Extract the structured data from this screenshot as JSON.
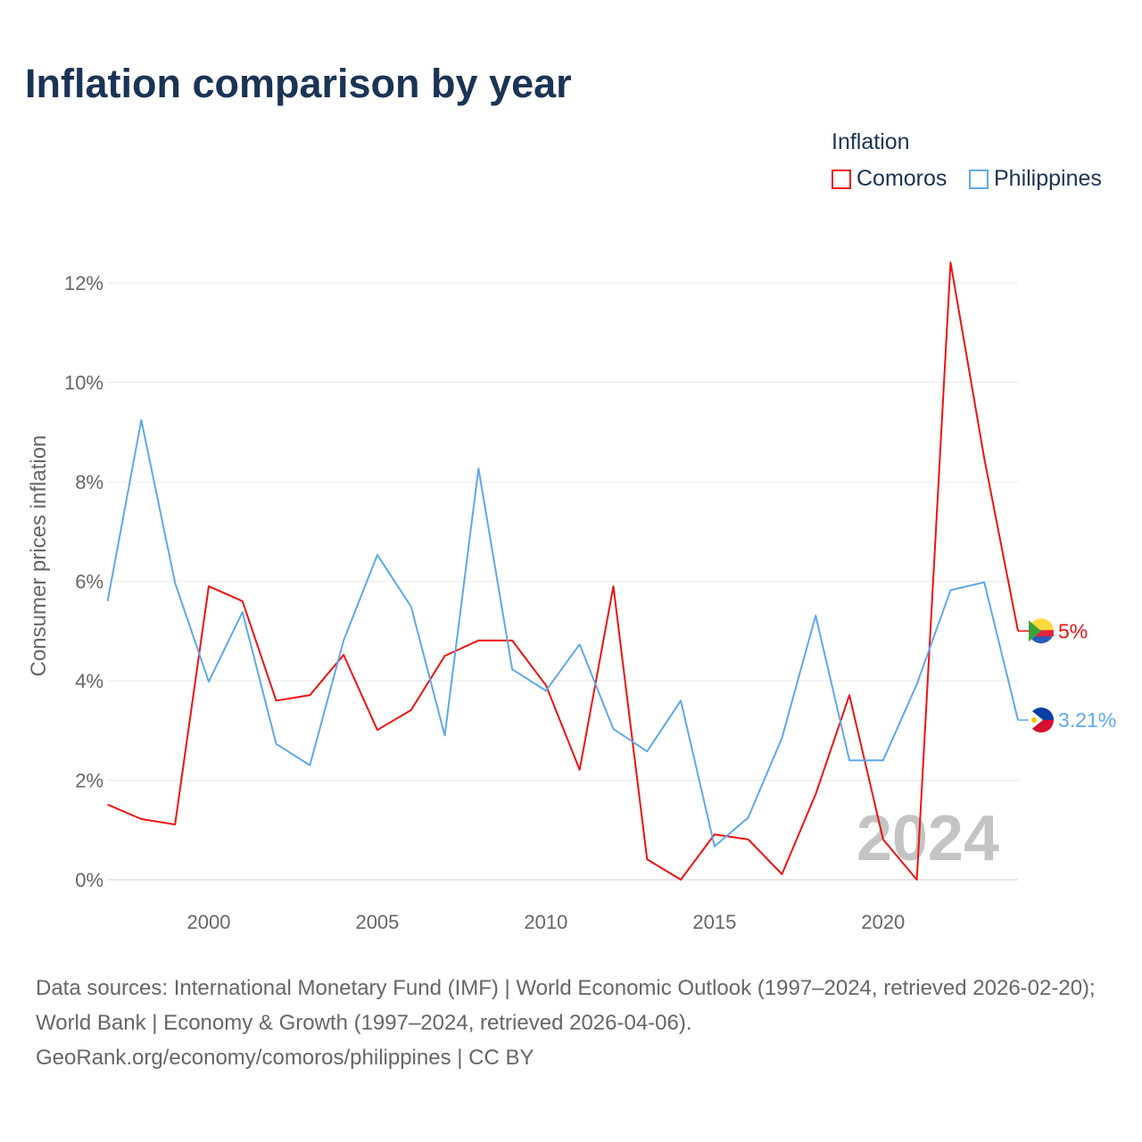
{
  "title": "Inflation comparison by year",
  "footer": {
    "sources": "Data sources: International Monetary Fund (IMF) | World Economic Outlook (1997–2024, retrieved 2026-02-20); World Bank | Economy & Growth (1997–2024, retrieved 2026-04-06).",
    "credit": "GeoRank.org/economy/comoros/philippines | CC BY"
  },
  "chart_data": {
    "type": "line",
    "title": "Inflation comparison by year",
    "ylabel": "Consumer prices inflation",
    "xlabel": "",
    "legend_title": "Inflation",
    "legend_position": "top-right",
    "year_watermark": "2024",
    "xlim": [
      1997,
      2024
    ],
    "ylim": [
      0,
      12.6
    ],
    "xticks": [
      2000,
      2005,
      2010,
      2015,
      2020
    ],
    "xtick_labels": [
      "2000",
      "2005",
      "2010",
      "2015",
      "2020"
    ],
    "yticks": [
      0,
      2,
      4,
      6,
      8,
      10,
      12
    ],
    "ytick_labels": [
      "0%",
      "2%",
      "4%",
      "6%",
      "8%",
      "10%",
      "12%"
    ],
    "grid": true,
    "x": [
      1997,
      1998,
      1999,
      2000,
      2001,
      2002,
      2003,
      2004,
      2005,
      2006,
      2007,
      2008,
      2009,
      2010,
      2011,
      2012,
      2013,
      2014,
      2015,
      2016,
      2017,
      2018,
      2019,
      2020,
      2021,
      2022,
      2023,
      2024
    ],
    "series": [
      {
        "name": "Comoros",
        "color": "#ee1111",
        "end_label": "5%",
        "values": [
          1.51,
          1.22,
          1.11,
          5.9,
          5.6,
          3.6,
          3.71,
          4.52,
          3.01,
          3.41,
          4.5,
          4.81,
          4.81,
          3.91,
          2.21,
          5.9,
          0.41,
          0,
          0.91,
          0.81,
          0.11,
          1.72,
          3.71,
          0.81,
          0,
          12.41,
          8.47,
          5.0
        ]
      },
      {
        "name": "Philippines",
        "color": "#5fa8ea",
        "end_label": "3.21%",
        "values": [
          5.6,
          9.24,
          5.97,
          3.98,
          5.38,
          2.73,
          2.3,
          4.81,
          6.53,
          5.49,
          2.9,
          8.27,
          4.23,
          3.8,
          4.73,
          3.03,
          2.58,
          3.6,
          0.67,
          1.25,
          2.85,
          5.31,
          2.4,
          2.4,
          3.93,
          5.82,
          5.98,
          3.21
        ]
      }
    ]
  }
}
